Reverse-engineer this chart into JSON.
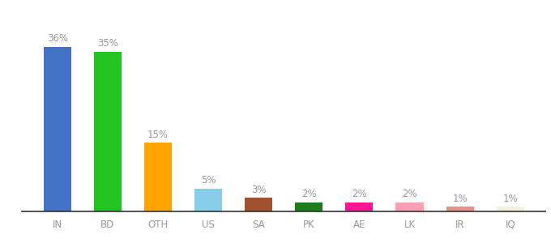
{
  "categories": [
    "IN",
    "BD",
    "OTH",
    "US",
    "SA",
    "PK",
    "AE",
    "LK",
    "IR",
    "IQ"
  ],
  "values": [
    36,
    35,
    15,
    5,
    3,
    2,
    2,
    2,
    1,
    1
  ],
  "labels": [
    "36%",
    "35%",
    "15%",
    "5%",
    "3%",
    "2%",
    "2%",
    "2%",
    "1%",
    "1%"
  ],
  "bar_colors": [
    "#4472c4",
    "#22c422",
    "#ffa500",
    "#87ceeb",
    "#a0522d",
    "#1a7e1a",
    "#ff1493",
    "#ff9eb5",
    "#e8918a",
    "#f5f0e0"
  ],
  "background_color": "#ffffff",
  "ylim": [
    0,
    42
  ],
  "label_fontsize": 8.5,
  "tick_fontsize": 8.5,
  "bar_width": 0.55,
  "label_color": "#999999",
  "tick_color": "#999999",
  "spine_color": "#333333"
}
